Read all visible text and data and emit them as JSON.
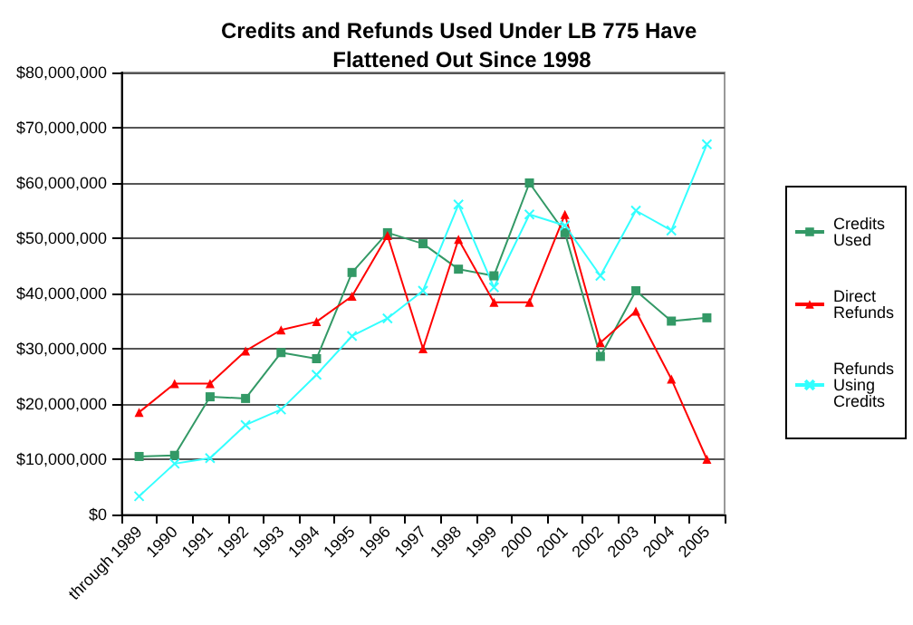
{
  "chart_data": {
    "type": "line",
    "title": "Credits and Refunds Used Under LB 775 Have Flattened Out Since 1998",
    "categories": [
      "through 1989",
      "1990",
      "1991",
      "1992",
      "1993",
      "1994",
      "1995",
      "1996",
      "1997",
      "1998",
      "1999",
      "2000",
      "2001",
      "2002",
      "2003",
      "2004",
      "2005"
    ],
    "series": [
      {
        "name": "Credits Used",
        "color": "#339966",
        "marker": "square",
        "values": [
          10500000,
          10700000,
          21300000,
          21000000,
          29300000,
          28200000,
          43800000,
          51000000,
          49000000,
          44400000,
          43200000,
          60000000,
          51000000,
          28600000,
          40500000,
          35000000,
          35600000
        ]
      },
      {
        "name": "Direct Refunds",
        "color": "#ff0000",
        "marker": "triangle",
        "values": [
          18500000,
          23700000,
          23700000,
          29600000,
          33400000,
          34900000,
          39500000,
          50500000,
          30000000,
          49800000,
          38400000,
          38400000,
          54300000,
          31100000,
          36800000,
          24500000,
          10000000
        ]
      },
      {
        "name": "Refunds Using Credits",
        "color": "#33ffff",
        "marker": "cross",
        "values": [
          3300000,
          9200000,
          10200000,
          16200000,
          19000000,
          25300000,
          32300000,
          35500000,
          40500000,
          56100000,
          41100000,
          54300000,
          52300000,
          43200000,
          55000000,
          51400000,
          67000000
        ]
      }
    ],
    "ylim": [
      0,
      80000000
    ],
    "yticks": [
      {
        "value": 0,
        "label": "$0"
      },
      {
        "value": 10000000,
        "label": "$10,000,000"
      },
      {
        "value": 20000000,
        "label": "$20,000,000"
      },
      {
        "value": 30000000,
        "label": "$30,000,000"
      },
      {
        "value": 40000000,
        "label": "$40,000,000"
      },
      {
        "value": 50000000,
        "label": "$50,000,000"
      },
      {
        "value": 60000000,
        "label": "$60,000,000"
      },
      {
        "value": 70000000,
        "label": "$70,000,000"
      },
      {
        "value": 80000000,
        "label": "$80,000,000"
      }
    ],
    "grid": "y",
    "legend": "right"
  }
}
